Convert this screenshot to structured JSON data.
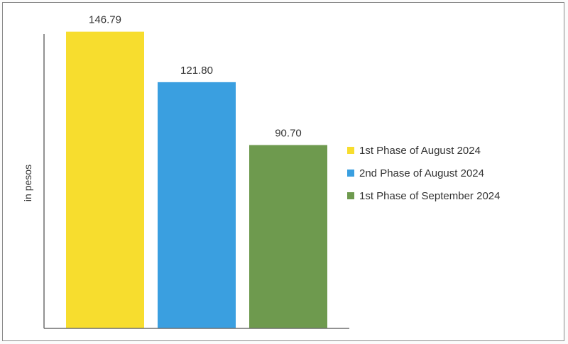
{
  "chart_data": {
    "type": "bar",
    "ylabel": "in pesos",
    "ylim": [
      0,
      150
    ],
    "grid": false,
    "legend_position": "right",
    "series": [
      {
        "name": "1st Phase of August 2024",
        "value": 146.79,
        "label": "146.79",
        "color": "#f7dd2e"
      },
      {
        "name": "2nd Phase of August 2024",
        "value": 121.8,
        "label": "121.80",
        "color": "#3a9fe0"
      },
      {
        "name": "1st Phase of September 2024",
        "value": 90.7,
        "label": "90.70",
        "color": "#6e9a4e"
      }
    ]
  }
}
